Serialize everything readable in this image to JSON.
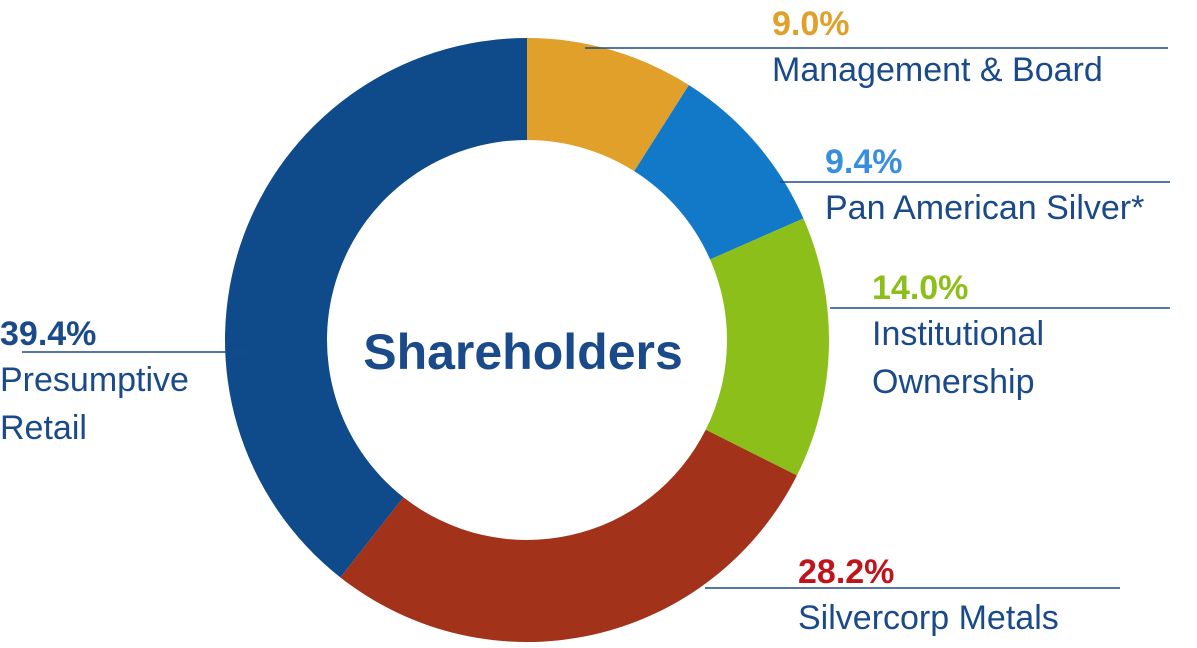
{
  "chart_data": {
    "type": "donut",
    "center_text": "Shareholders",
    "categories": [
      "Management & Board",
      "Pan American Silver*",
      "Institutional Ownership",
      "Silvercorp Metals",
      "Presumptive Retail"
    ],
    "values": [
      9.0,
      9.4,
      14.0,
      28.2,
      39.4
    ],
    "value_labels": [
      "9.0%",
      "9.4%",
      "14.0%",
      "28.2%",
      "39.4%"
    ],
    "colors": [
      "#e0a02a",
      "#1278c8",
      "#8cbf1a",
      "#a3321b",
      "#0f4a8a"
    ],
    "label_colors": [
      "#e0a02a",
      "#3a8ee0",
      "#8cbf1a",
      "#c0141c",
      "#1a4a8a"
    ],
    "text_color": "#1a4a8a"
  }
}
